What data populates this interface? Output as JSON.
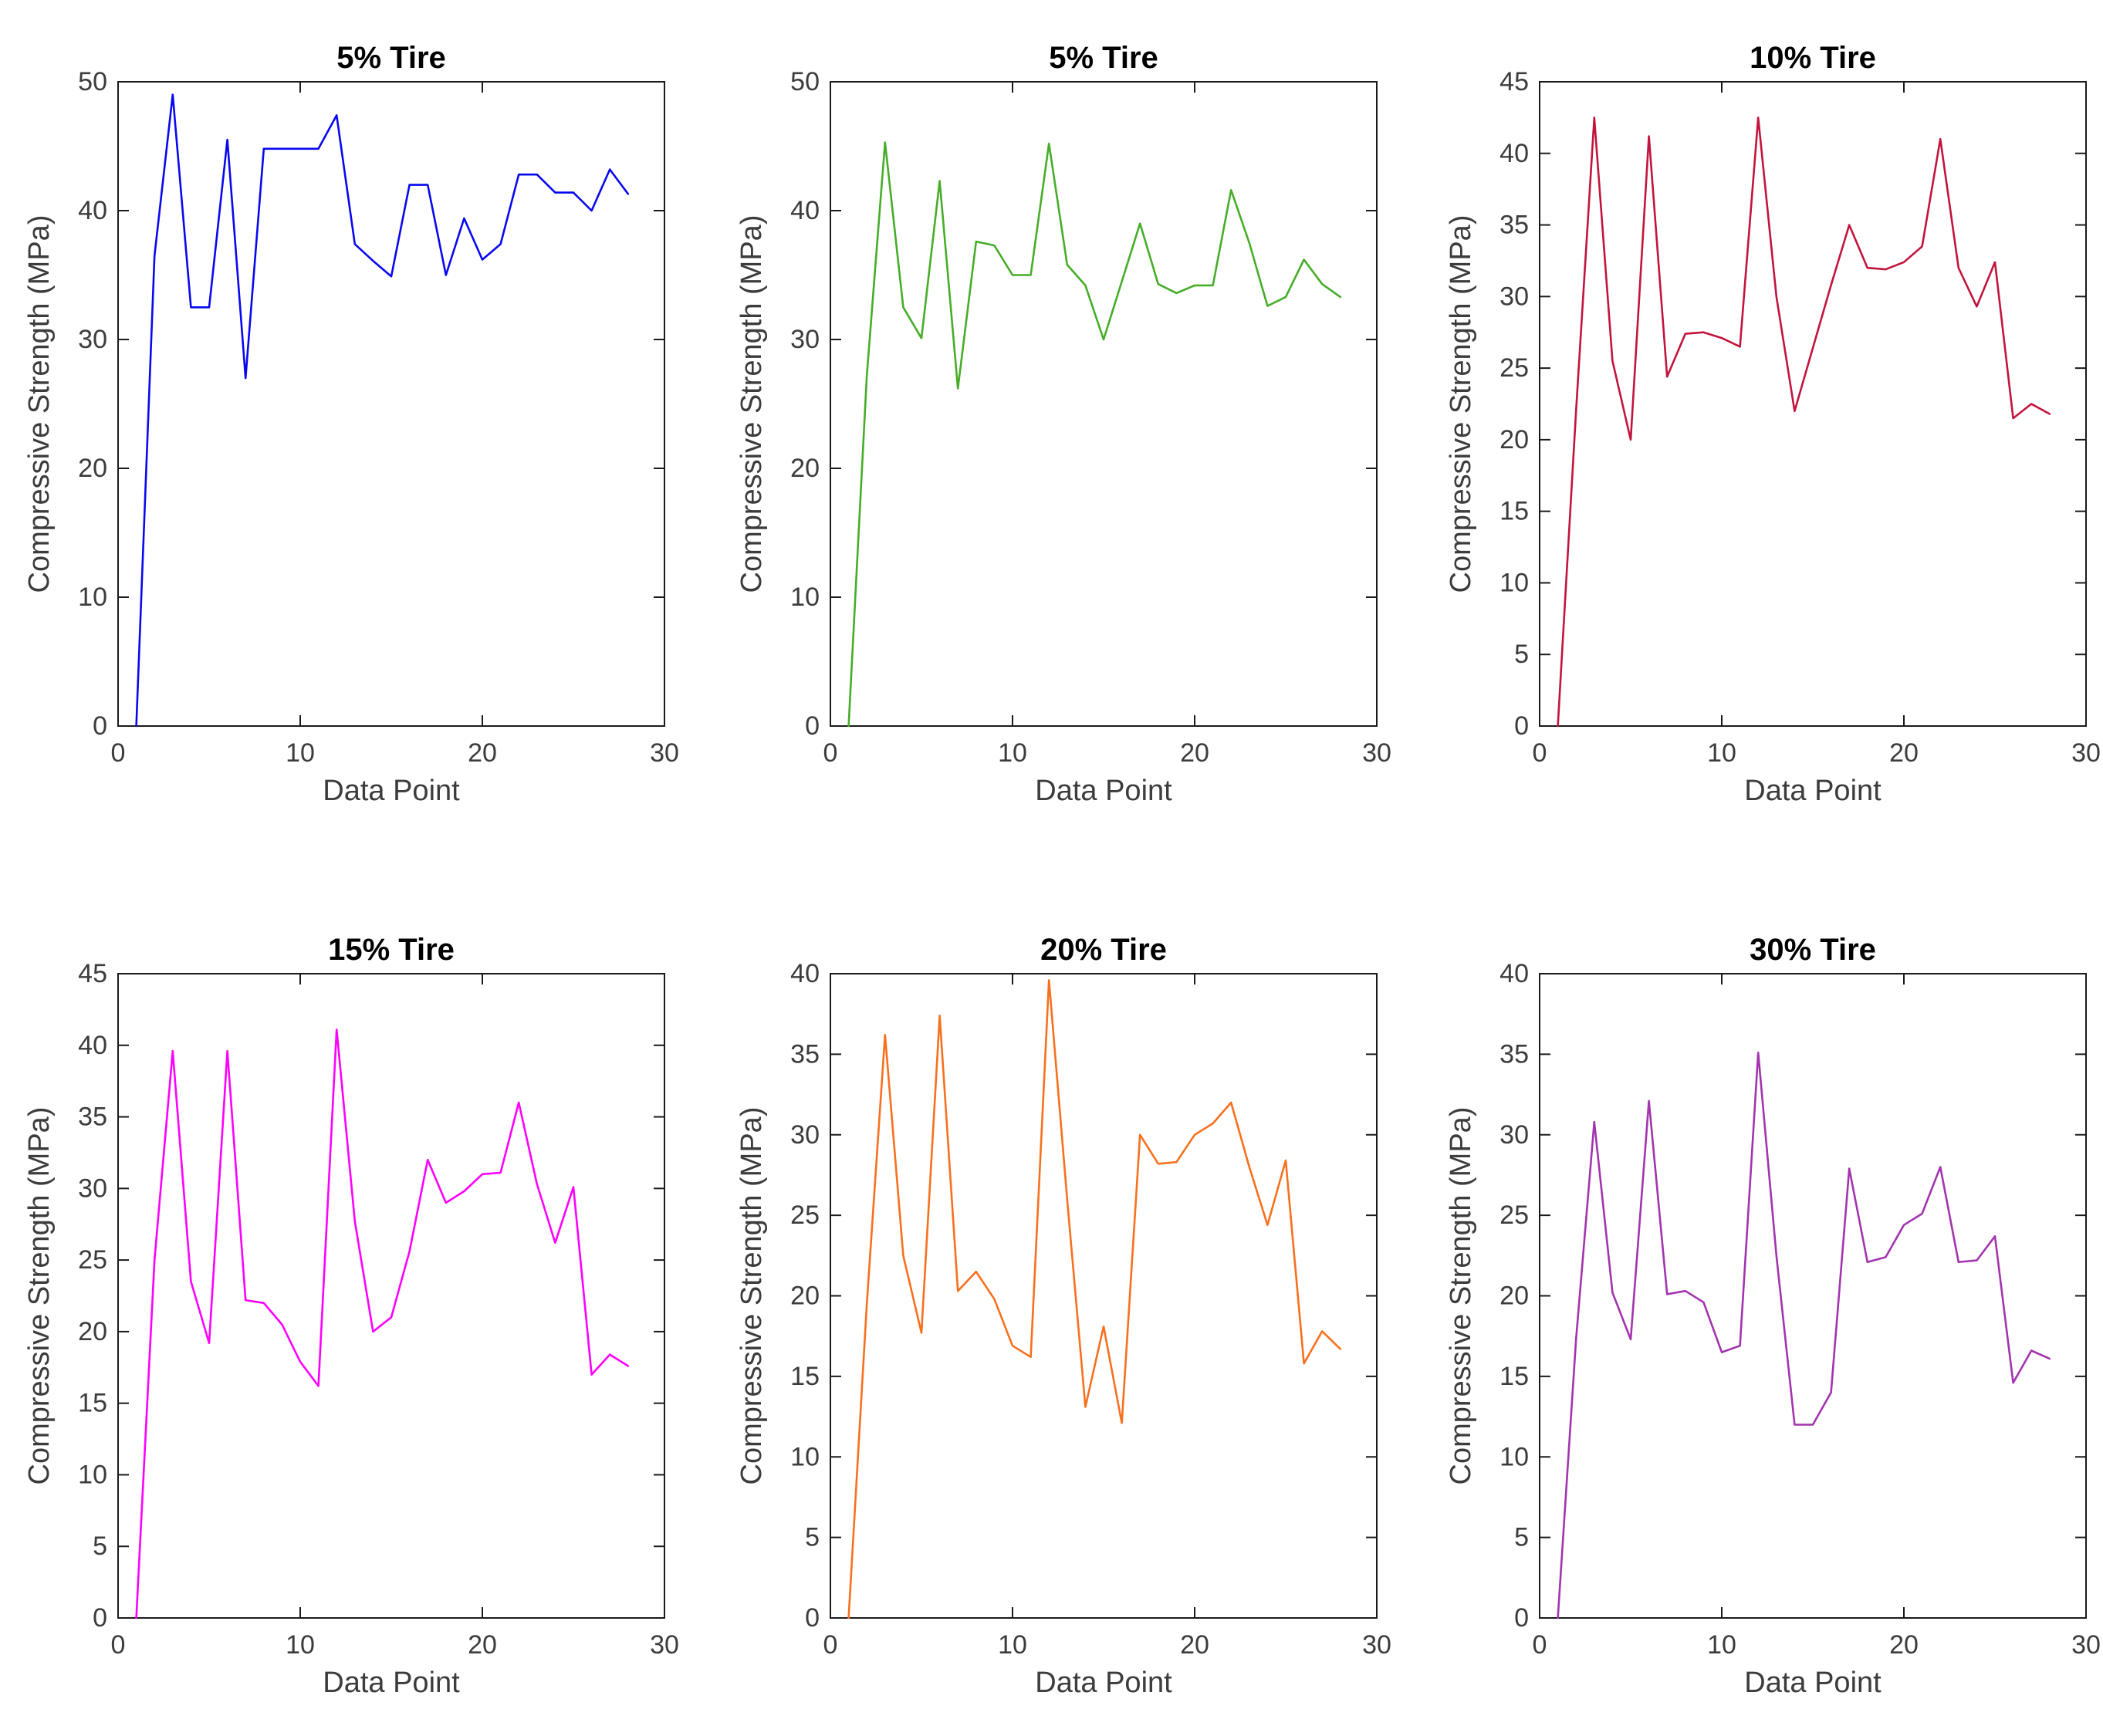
{
  "figure": {
    "background": "#ffffff",
    "rows": 2,
    "cols": 3,
    "axes_color": "#1a1a1a",
    "text_color": "#3c3c3c"
  },
  "chart_data": [
    {
      "type": "line",
      "title": "5% Tire",
      "xlabel": "Data Point",
      "ylabel": "Compressive Strength (MPa)",
      "color": "#0808f0",
      "xlim": [
        0,
        30
      ],
      "xticks": [
        0,
        10,
        20,
        30
      ],
      "ylim": [
        0,
        50
      ],
      "ytick_step": 10,
      "x_start": 1,
      "values": [
        0,
        36.5,
        49,
        32.5,
        32.5,
        45.5,
        27,
        44.8,
        44.8,
        44.8,
        44.8,
        47.4,
        37.4,
        36.1,
        34.9,
        42,
        42,
        35,
        39.4,
        36.2,
        37.4,
        42.8,
        42.8,
        41.4,
        41.4,
        40,
        43.2,
        41.3
      ]
    },
    {
      "type": "line",
      "title": "5% Tire",
      "xlabel": "Data Point",
      "ylabel": "Compressive Strength (MPa)",
      "color": "#46ad28",
      "xlim": [
        0,
        30
      ],
      "xticks": [
        0,
        10,
        20,
        30
      ],
      "ylim": [
        0,
        50
      ],
      "ytick_step": 10,
      "x_start": 1,
      "values": [
        0,
        27.2,
        45.3,
        32.5,
        30.1,
        42.3,
        26.2,
        37.6,
        37.3,
        35,
        35,
        45.2,
        35.8,
        34.2,
        30,
        34.5,
        39,
        34.3,
        33.6,
        34.2,
        34.2,
        41.6,
        37.5,
        32.6,
        33.3,
        36.2,
        34.3,
        33.3
      ]
    },
    {
      "type": "line",
      "title": "10% Tire",
      "xlabel": "Data Point",
      "ylabel": "Compressive Strength (MPa)",
      "color": "#c2143c",
      "xlim": [
        0,
        30
      ],
      "xticks": [
        0,
        10,
        20,
        30
      ],
      "ylim": [
        0,
        45
      ],
      "ytick_step": 5,
      "x_start": 1,
      "values": [
        0,
        22,
        42.5,
        25.5,
        20,
        41.2,
        24.4,
        27.4,
        27.5,
        27.1,
        26.5,
        42.5,
        30,
        22,
        26.4,
        30.8,
        35,
        32,
        31.9,
        32.4,
        33.5,
        41,
        32,
        29.3,
        32.4,
        21.5,
        22.5,
        21.8
      ]
    },
    {
      "type": "line",
      "title": "15% Tire",
      "xlabel": "Data Point",
      "ylabel": "Compressive Strength (MPa)",
      "color": "#ff00ff",
      "xlim": [
        0,
        30
      ],
      "xticks": [
        0,
        10,
        20,
        30
      ],
      "ylim": [
        0,
        45
      ],
      "ytick_step": 5,
      "x_start": 1,
      "values": [
        0,
        25,
        39.6,
        23.5,
        19.2,
        39.6,
        22.2,
        22,
        20.5,
        17.9,
        16.2,
        41.1,
        27.7,
        20,
        21,
        25.6,
        32,
        29,
        29.8,
        31,
        31.1,
        36,
        30.3,
        26.2,
        30.1,
        17,
        18.4,
        17.6
      ]
    },
    {
      "type": "line",
      "title": "20% Tire",
      "xlabel": "Data Point",
      "ylabel": "Compressive Strength (MPa)",
      "color": "#f8701e",
      "xlim": [
        0,
        30
      ],
      "xticks": [
        0,
        10,
        20,
        30
      ],
      "ylim": [
        0,
        40
      ],
      "ytick_step": 5,
      "x_start": 1,
      "values": [
        0,
        19.5,
        36.2,
        22.5,
        17.7,
        37.4,
        20.3,
        21.5,
        19.8,
        16.9,
        16.2,
        39.6,
        26,
        13.1,
        18.1,
        12.1,
        30,
        28.2,
        28.3,
        30,
        30.7,
        32,
        28,
        24.4,
        28.4,
        15.8,
        17.8,
        16.7
      ]
    },
    {
      "type": "line",
      "title": "30% Tire",
      "xlabel": "Data Point",
      "ylabel": "Compressive Strength (MPa)",
      "color": "#a234ae",
      "xlim": [
        0,
        30
      ],
      "xticks": [
        0,
        10,
        20,
        30
      ],
      "ylim": [
        0,
        40
      ],
      "ytick_step": 5,
      "x_start": 1,
      "values": [
        0,
        17.3,
        30.8,
        20.2,
        17.3,
        32.1,
        20.1,
        20.3,
        19.6,
        16.5,
        16.9,
        35.1,
        22.5,
        12,
        12,
        14,
        27.9,
        22.1,
        22.4,
        24.4,
        25.1,
        28,
        22.1,
        22.2,
        23.7,
        14.6,
        16.6,
        16.1
      ]
    }
  ]
}
